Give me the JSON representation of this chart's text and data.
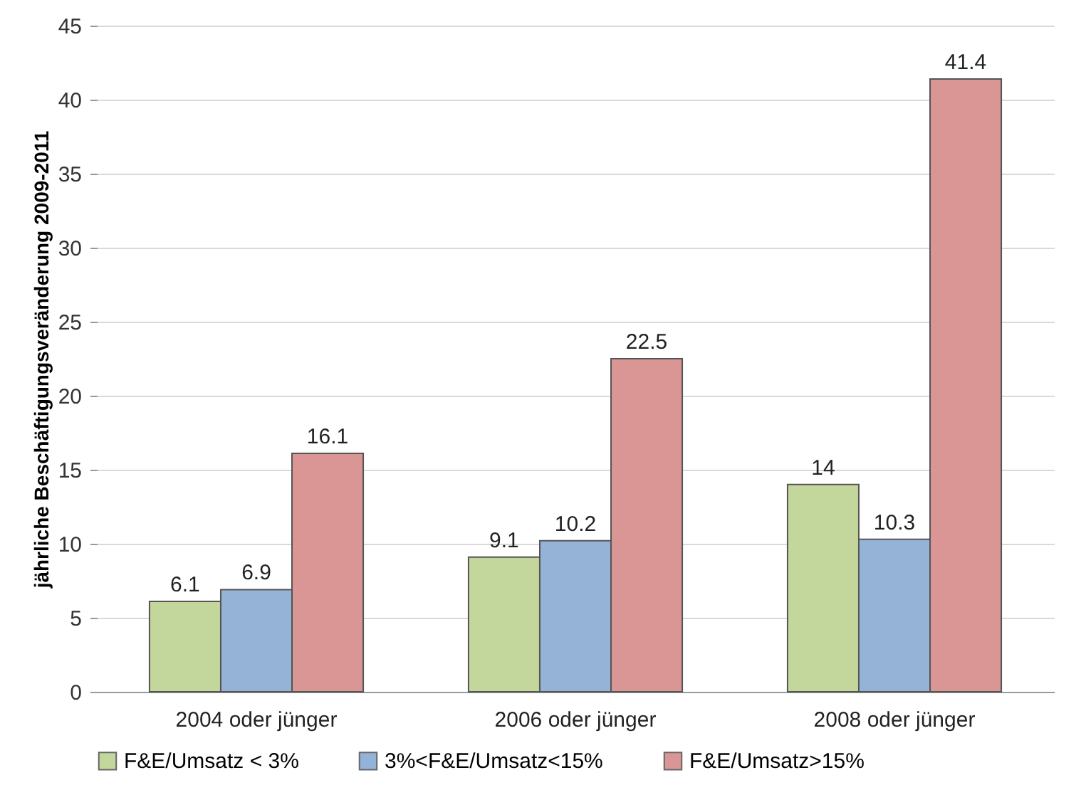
{
  "chart_data": {
    "type": "bar",
    "ylabel": "jährliche Beschäftigungsveränderung 2009-2011",
    "categories": [
      "2004 oder jünger",
      "2006 oder jünger",
      "2008 oder jünger"
    ],
    "series": [
      {
        "name": "F&E/Umsatz < 3%",
        "color": "#c3d69b",
        "values": [
          6.1,
          9.1,
          14
        ]
      },
      {
        "name": "3%<F&E/Umsatz<15%",
        "color": "#95b3d7",
        "values": [
          6.9,
          10.2,
          10.3
        ]
      },
      {
        "name": "F&E/Umsatz>15%",
        "color": "#d99694",
        "values": [
          16.1,
          22.5,
          41.4
        ]
      }
    ],
    "ylim": [
      0,
      45
    ],
    "yticks": [
      0,
      5,
      10,
      15,
      20,
      25,
      30,
      35,
      40,
      45
    ],
    "grid": "y",
    "legend": "bottom",
    "data_labels": true
  }
}
